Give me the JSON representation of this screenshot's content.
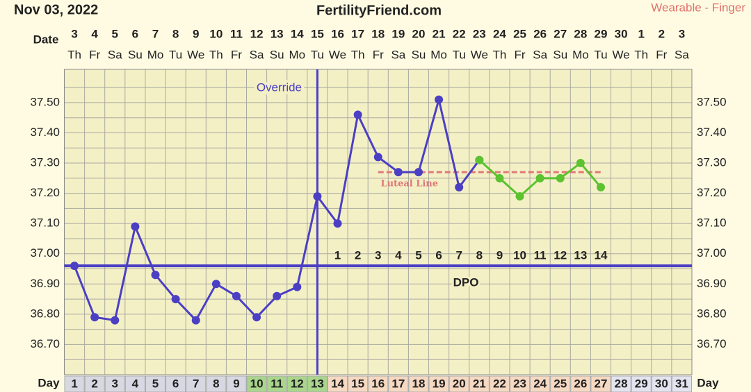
{
  "chart_data": {
    "type": "line",
    "header_date": "Nov 03, 2022",
    "site": "FertilityFriend.com",
    "source": "Wearable - Finger",
    "date_label": "Date",
    "day_label": "Day",
    "dates": [
      3,
      4,
      5,
      6,
      7,
      8,
      9,
      10,
      11,
      12,
      13,
      14,
      15,
      16,
      17,
      18,
      19,
      20,
      21,
      22,
      23,
      24,
      25,
      26,
      27,
      28,
      29,
      30,
      1,
      2,
      3
    ],
    "weekdays": [
      "Th",
      "Fr",
      "Sa",
      "Su",
      "Mo",
      "Tu",
      "We",
      "Th",
      "Fr",
      "Sa",
      "Su",
      "Mo",
      "Tu",
      "We",
      "Th",
      "Fr",
      "Sa",
      "Su",
      "Mo",
      "Tu",
      "We",
      "Th",
      "Fr",
      "Sa",
      "Su",
      "Mo",
      "Tu",
      "We",
      "Th",
      "Fr",
      "Sa"
    ],
    "categories": [
      1,
      2,
      3,
      4,
      5,
      6,
      7,
      8,
      9,
      10,
      11,
      12,
      13,
      14,
      15,
      16,
      17,
      18,
      19,
      20,
      21,
      22,
      23,
      24,
      25,
      26,
      27,
      28,
      29,
      30,
      31
    ],
    "day_phases": [
      {
        "from": 1,
        "to": 9,
        "color": "#d8d8e2"
      },
      {
        "from": 10,
        "to": 13,
        "color": "#a9d68c"
      },
      {
        "from": 14,
        "to": 27,
        "color": "#f6d9c2"
      },
      {
        "from": 28,
        "to": 31,
        "color": "#e2e5ef"
      }
    ],
    "series": [
      {
        "color": "#4b3fc4",
        "values": [
          36.96,
          36.79,
          36.78,
          37.09,
          36.93,
          36.85,
          36.78,
          36.9,
          36.86,
          36.79,
          36.86,
          36.89,
          37.19,
          37.1,
          37.46,
          37.32,
          37.27,
          37.27,
          37.51,
          37.22,
          37.31,
          null,
          null,
          null,
          null,
          null,
          null,
          null,
          null,
          null,
          null
        ]
      },
      {
        "color": "#5cc230",
        "values": [
          null,
          null,
          null,
          null,
          null,
          null,
          null,
          null,
          null,
          null,
          null,
          null,
          null,
          null,
          null,
          null,
          null,
          null,
          null,
          null,
          37.31,
          37.25,
          37.19,
          37.25,
          37.25,
          37.3,
          37.22,
          null,
          null,
          null,
          null
        ]
      }
    ],
    "ylim": [
      36.6,
      37.61
    ],
    "yticks": [
      {
        "value": 36.7,
        "label": "36.70"
      },
      {
        "value": 36.8,
        "label": "36.80"
      },
      {
        "value": 36.9,
        "label": "36.90"
      },
      {
        "value": 37.0,
        "label": "37.00"
      },
      {
        "value": 37.1,
        "label": "37.10"
      },
      {
        "value": 37.2,
        "label": "37.20"
      },
      {
        "value": 37.3,
        "label": "37.30"
      },
      {
        "value": 37.4,
        "label": "37.40"
      },
      {
        "value": 37.5,
        "label": "37.50"
      }
    ],
    "minor_yticks": [
      36.65,
      36.75,
      36.85,
      36.95,
      37.05,
      37.15,
      37.25,
      37.35,
      37.45,
      37.55
    ],
    "grid": true,
    "coverline": {
      "value": 36.96,
      "color": "#4b3fc4"
    },
    "override": {
      "label": "Override",
      "day": 13
    },
    "luteal": {
      "label": "Luteal Line",
      "value": 37.27,
      "from": 16,
      "to": 27,
      "color": "#e07878"
    },
    "dpo": {
      "label": "DPO",
      "values": [
        null,
        null,
        null,
        null,
        null,
        null,
        null,
        null,
        null,
        null,
        null,
        null,
        null,
        1,
        2,
        3,
        4,
        5,
        6,
        7,
        8,
        9,
        10,
        11,
        12,
        13,
        14,
        null,
        null,
        null,
        null
      ]
    }
  }
}
